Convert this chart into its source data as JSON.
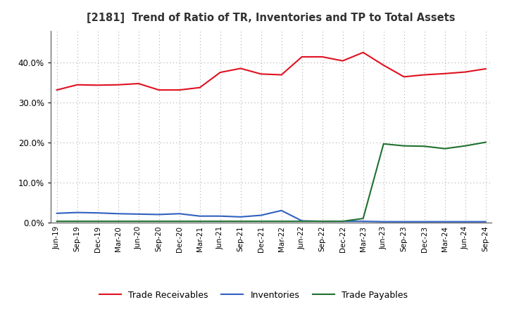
{
  "title": "[2181]  Trend of Ratio of TR, Inventories and TP to Total Assets",
  "x_labels": [
    "Jun-19",
    "Sep-19",
    "Dec-19",
    "Mar-20",
    "Jun-20",
    "Sep-20",
    "Dec-20",
    "Mar-21",
    "Jun-21",
    "Sep-21",
    "Dec-21",
    "Mar-22",
    "Jun-22",
    "Sep-22",
    "Dec-22",
    "Mar-23",
    "Jun-23",
    "Sep-23",
    "Dec-23",
    "Mar-24",
    "Jun-24",
    "Sep-24"
  ],
  "trade_receivables": [
    0.332,
    0.345,
    0.344,
    0.345,
    0.348,
    0.332,
    0.332,
    0.338,
    0.376,
    0.386,
    0.372,
    0.37,
    0.415,
    0.415,
    0.405,
    0.426,
    0.394,
    0.365,
    0.37,
    0.373,
    0.377,
    0.385
  ],
  "inventories": [
    0.023,
    0.025,
    0.024,
    0.022,
    0.021,
    0.02,
    0.022,
    0.016,
    0.016,
    0.014,
    0.018,
    0.03,
    0.004,
    0.003,
    0.003,
    0.003,
    0.002,
    0.002,
    0.002,
    0.002,
    0.002,
    0.002
  ],
  "trade_payables": [
    0.003,
    0.003,
    0.003,
    0.003,
    0.003,
    0.003,
    0.003,
    0.003,
    0.003,
    0.003,
    0.003,
    0.003,
    0.003,
    0.003,
    0.003,
    0.01,
    0.197,
    0.192,
    0.191,
    0.185,
    0.192,
    0.201
  ],
  "tr_color": "#e01020",
  "inv_color": "#3060c0",
  "tp_color": "#207030",
  "bg_color": "#ffffff",
  "grid_color": "#aaaaaa",
  "ylim": [
    0.0,
    0.48
  ],
  "yticks": [
    0.0,
    0.1,
    0.2,
    0.3,
    0.4
  ],
  "legend_labels": [
    "Trade Receivables",
    "Inventories",
    "Trade Payables"
  ]
}
